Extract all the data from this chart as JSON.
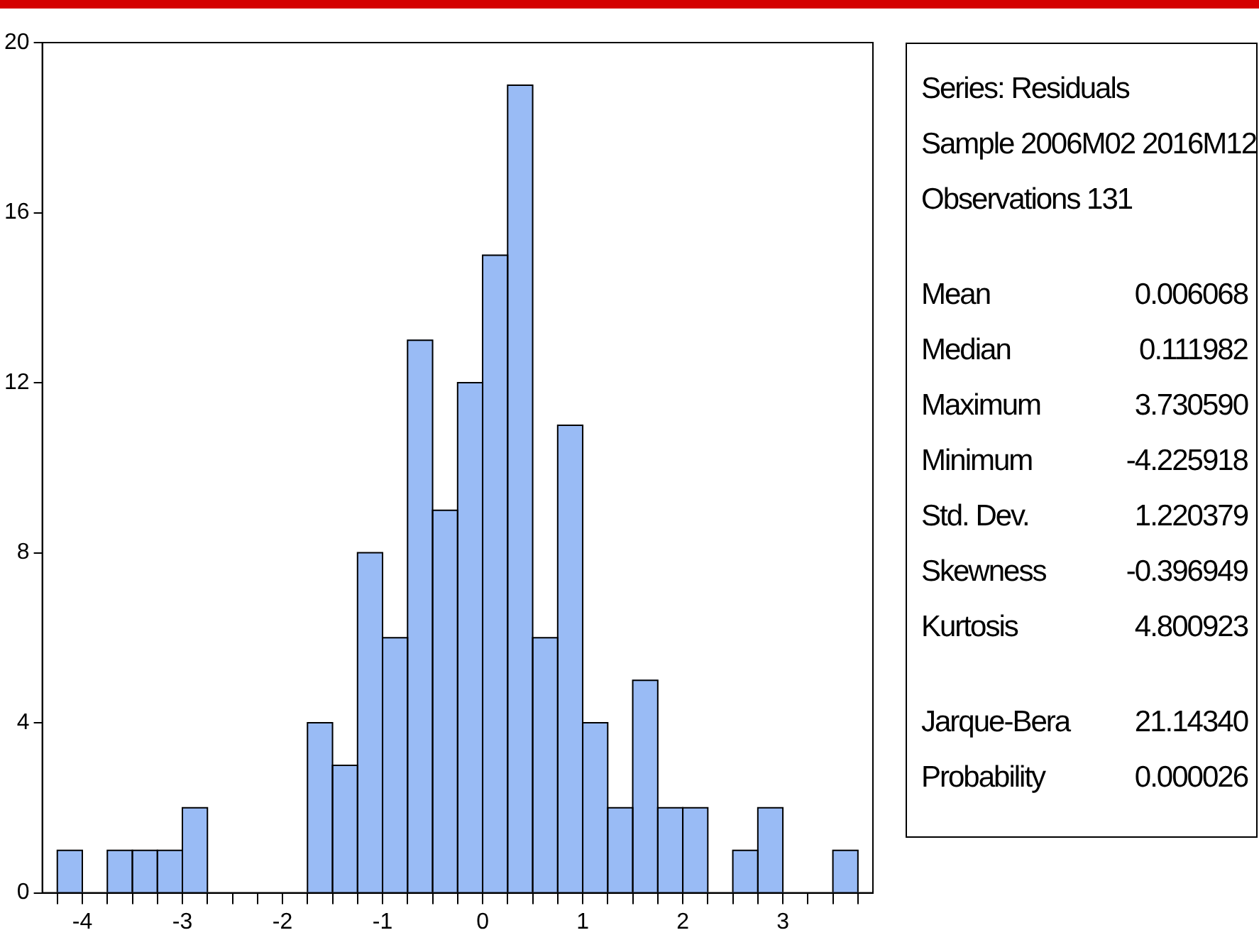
{
  "chart_data": {
    "type": "histogram",
    "color": "#99bbf5",
    "bins": [
      -4.25,
      -4,
      -3.75,
      -3.5,
      -3.25,
      -3,
      -2.75,
      -2.5,
      -2.25,
      -2,
      -1.75,
      -1.5,
      -1.25,
      -1,
      -0.75,
      -0.5,
      -0.25,
      0,
      0.25,
      0.5,
      0.75,
      1,
      1.25,
      1.5,
      1.75,
      2,
      2.25,
      2.5,
      2.75,
      3,
      3.25,
      3.5,
      3.75
    ],
    "values": [
      1,
      0,
      1,
      1,
      1,
      2,
      0,
      0,
      0,
      0,
      4,
      3,
      8,
      6,
      13,
      9,
      12,
      15,
      19,
      6,
      11,
      4,
      2,
      5,
      2,
      2,
      0,
      1,
      2,
      0,
      0,
      1
    ],
    "xlim": [
      -4.4,
      3.9
    ],
    "xticks": [
      {
        "value": -4.25,
        "label": null
      },
      -4,
      {
        "value": -3.75,
        "label": null
      },
      {
        "value": -3.5,
        "label": null
      },
      {
        "value": -3.25,
        "label": null
      },
      -3,
      {
        "value": -2.75,
        "label": null
      },
      {
        "value": -2.5,
        "label": null
      },
      {
        "value": -2.25,
        "label": null
      },
      -2,
      {
        "value": -1.75,
        "label": null
      },
      {
        "value": -1.5,
        "label": null
      },
      {
        "value": -1.25,
        "label": null
      },
      -1,
      {
        "value": -0.75,
        "label": null
      },
      {
        "value": -0.5,
        "label": null
      },
      {
        "value": -0.25,
        "label": null
      },
      0,
      {
        "value": 0.25,
        "label": null
      },
      {
        "value": 0.5,
        "label": null
      },
      {
        "value": 0.75,
        "label": null
      },
      1,
      {
        "value": 1.25,
        "label": null
      },
      {
        "value": 1.5,
        "label": null
      },
      {
        "value": 1.75,
        "label": null
      },
      2,
      {
        "value": 2.25,
        "label": null
      },
      {
        "value": 2.5,
        "label": null
      },
      {
        "value": 2.75,
        "label": null
      },
      3,
      {
        "value": 3.25,
        "label": null
      },
      {
        "value": 3.5,
        "label": null
      },
      {
        "value": 3.75,
        "label": null
      }
    ],
    "ylim": [
      0,
      20
    ],
    "yticks": [
      0,
      4,
      8,
      12,
      16,
      20
    ],
    "grid": false,
    "legend": false,
    "annotations": [
      "Series: Residuals",
      "Sample 2006M02 2016M12",
      "Observations 131",
      "Mean 0.006068",
      "Median 0.111982",
      "Maximum 3.730590",
      "Minimum -4.225918",
      "Std. Dev. 1.220379",
      "Skewness -0.396949",
      "Kurtosis 4.800923",
      "Jarque-Bera 21.14340",
      "Probability 0.000026"
    ]
  }
}
